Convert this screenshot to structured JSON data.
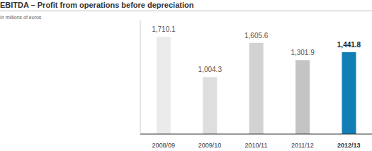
{
  "chart_data": {
    "type": "bar",
    "title": "EBITDA – Profit from operations before depreciation",
    "subtitle": "In millions of euros",
    "categories": [
      "2008/09",
      "2009/10",
      "2010/11",
      "2011/12",
      "2012/13"
    ],
    "values": [
      1710.1,
      1004.3,
      1605.6,
      1301.9,
      1441.8
    ],
    "value_labels": [
      "1,710.1",
      "1,004.3",
      "1,605.6",
      "1,301.9",
      "1,441.8"
    ],
    "colors": [
      "#ebebeb",
      "#dedede",
      "#d2d2d2",
      "#c4c4c4",
      "#137db6"
    ],
    "ylim": [
      0,
      2000
    ],
    "data_labels": true,
    "tick_labels": "x",
    "grid": false
  }
}
